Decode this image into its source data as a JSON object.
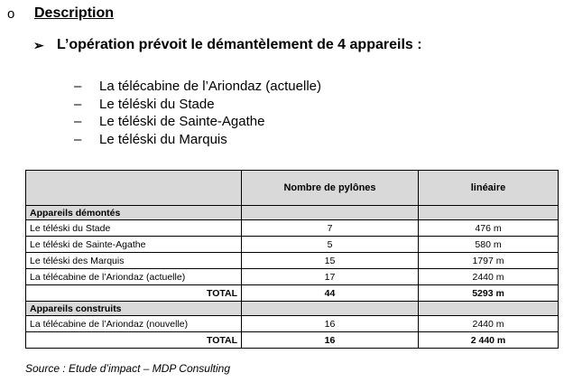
{
  "section": {
    "bullet": "o",
    "title": "Description"
  },
  "intro": {
    "arrow": "➢",
    "text": "L’opération prévoit le démantèlement de 4 appareils :"
  },
  "devices_list": [
    "La télécabine de l’Ariondaz (actuelle)",
    "Le téléski du Stade",
    "Le téléski de Sainte-Agathe",
    "Le téléski du Marquis"
  ],
  "table": {
    "headers": [
      "",
      "Nombre de pylônes",
      "linéaire"
    ],
    "group1": {
      "label": "Appareils démontés",
      "rows": [
        [
          "Le téléski du Stade",
          "7",
          "476 m"
        ],
        [
          "Le téléski de Sainte-Agathe",
          "5",
          "580 m"
        ],
        [
          "Le téléski des Marquis",
          "15",
          "1797 m"
        ],
        [
          "La télécabine de l’Ariondaz (actuelle)",
          "17",
          "2440 m"
        ]
      ],
      "total": [
        "TOTAL",
        "44",
        "5293 m"
      ]
    },
    "group2": {
      "label": "Appareils construits",
      "rows": [
        [
          "La télécabine de l’Ariondaz (nouvelle)",
          "16",
          "2440 m"
        ]
      ],
      "total": [
        "TOTAL",
        "16",
        "2 440 m"
      ]
    }
  },
  "source": "Source : Etude d’impact – MDP Consulting"
}
